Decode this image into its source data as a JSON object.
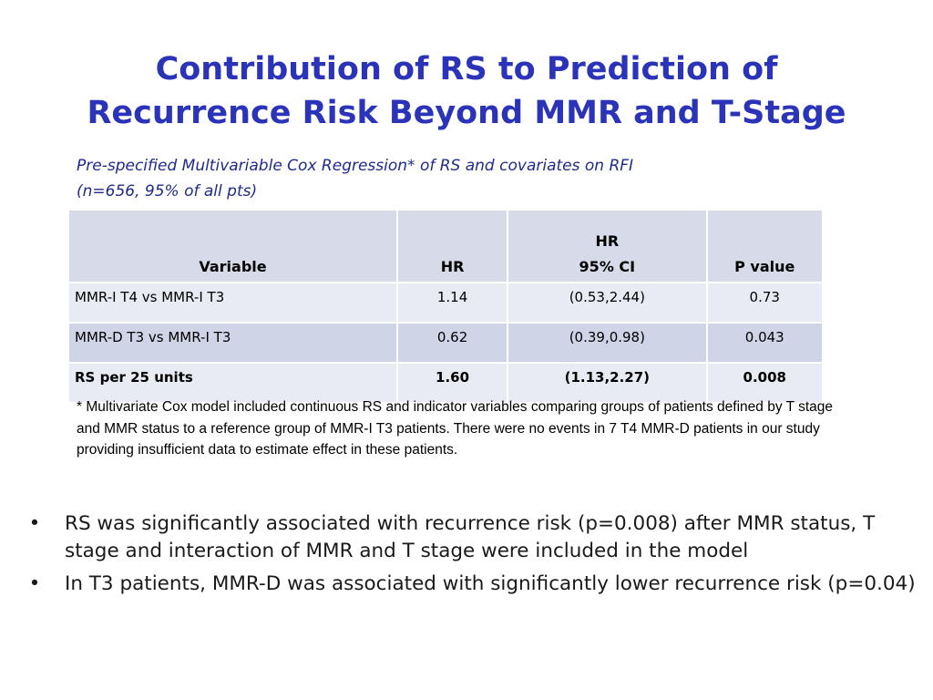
{
  "title": {
    "line1": "Contribution of RS to Prediction of",
    "line2": "Recurrence Risk Beyond MMR and T-Stage"
  },
  "subtitle": {
    "line1": "Pre-specified Multivariable Cox Regression* of RS and covariates on RFI",
    "line2": "(n=656, 95% of all pts)"
  },
  "table": {
    "headers": {
      "variable": "Variable",
      "hr": "HR",
      "ci_line1": "HR",
      "ci_line2": "95% CI",
      "p": "P value"
    },
    "rows": [
      {
        "variable": "MMR-I T4 vs MMR-I T3",
        "hr": "1.14",
        "ci": "(0.53,2.44)",
        "p": "0.73"
      },
      {
        "variable": "MMR-D T3 vs MMR-I T3",
        "hr": "0.62",
        "ci": "(0.39,0.98)",
        "p": "0.043"
      },
      {
        "variable": "RS per 25 units",
        "hr": "1.60",
        "ci": "(1.13,2.27)",
        "p": "0.008"
      }
    ]
  },
  "footnote": "* Multivariate Cox model included continuous RS and indicator variables comparing groups of patients defined by T stage and MMR status to a reference group of MMR-I T3 patients. There were no events in 7 T4 MMR-D patients in our study providing insufficient data to estimate effect in these patients.",
  "bullets": {
    "marker": "•",
    "items": [
      "RS was significantly associated with recurrence risk (p=0.008) after MMR status, T stage and interaction of MMR and T stage were included in the model",
      "In T3 patients, MMR-D was associated with significantly lower recurrence risk (p=0.04)"
    ]
  },
  "colors": {
    "title": "#2b34b8",
    "subtitle": "#1f2a8a",
    "header_bg": "#d7dae9",
    "row_light": "#e8eaf4",
    "row_dark": "#d0d4e7"
  }
}
